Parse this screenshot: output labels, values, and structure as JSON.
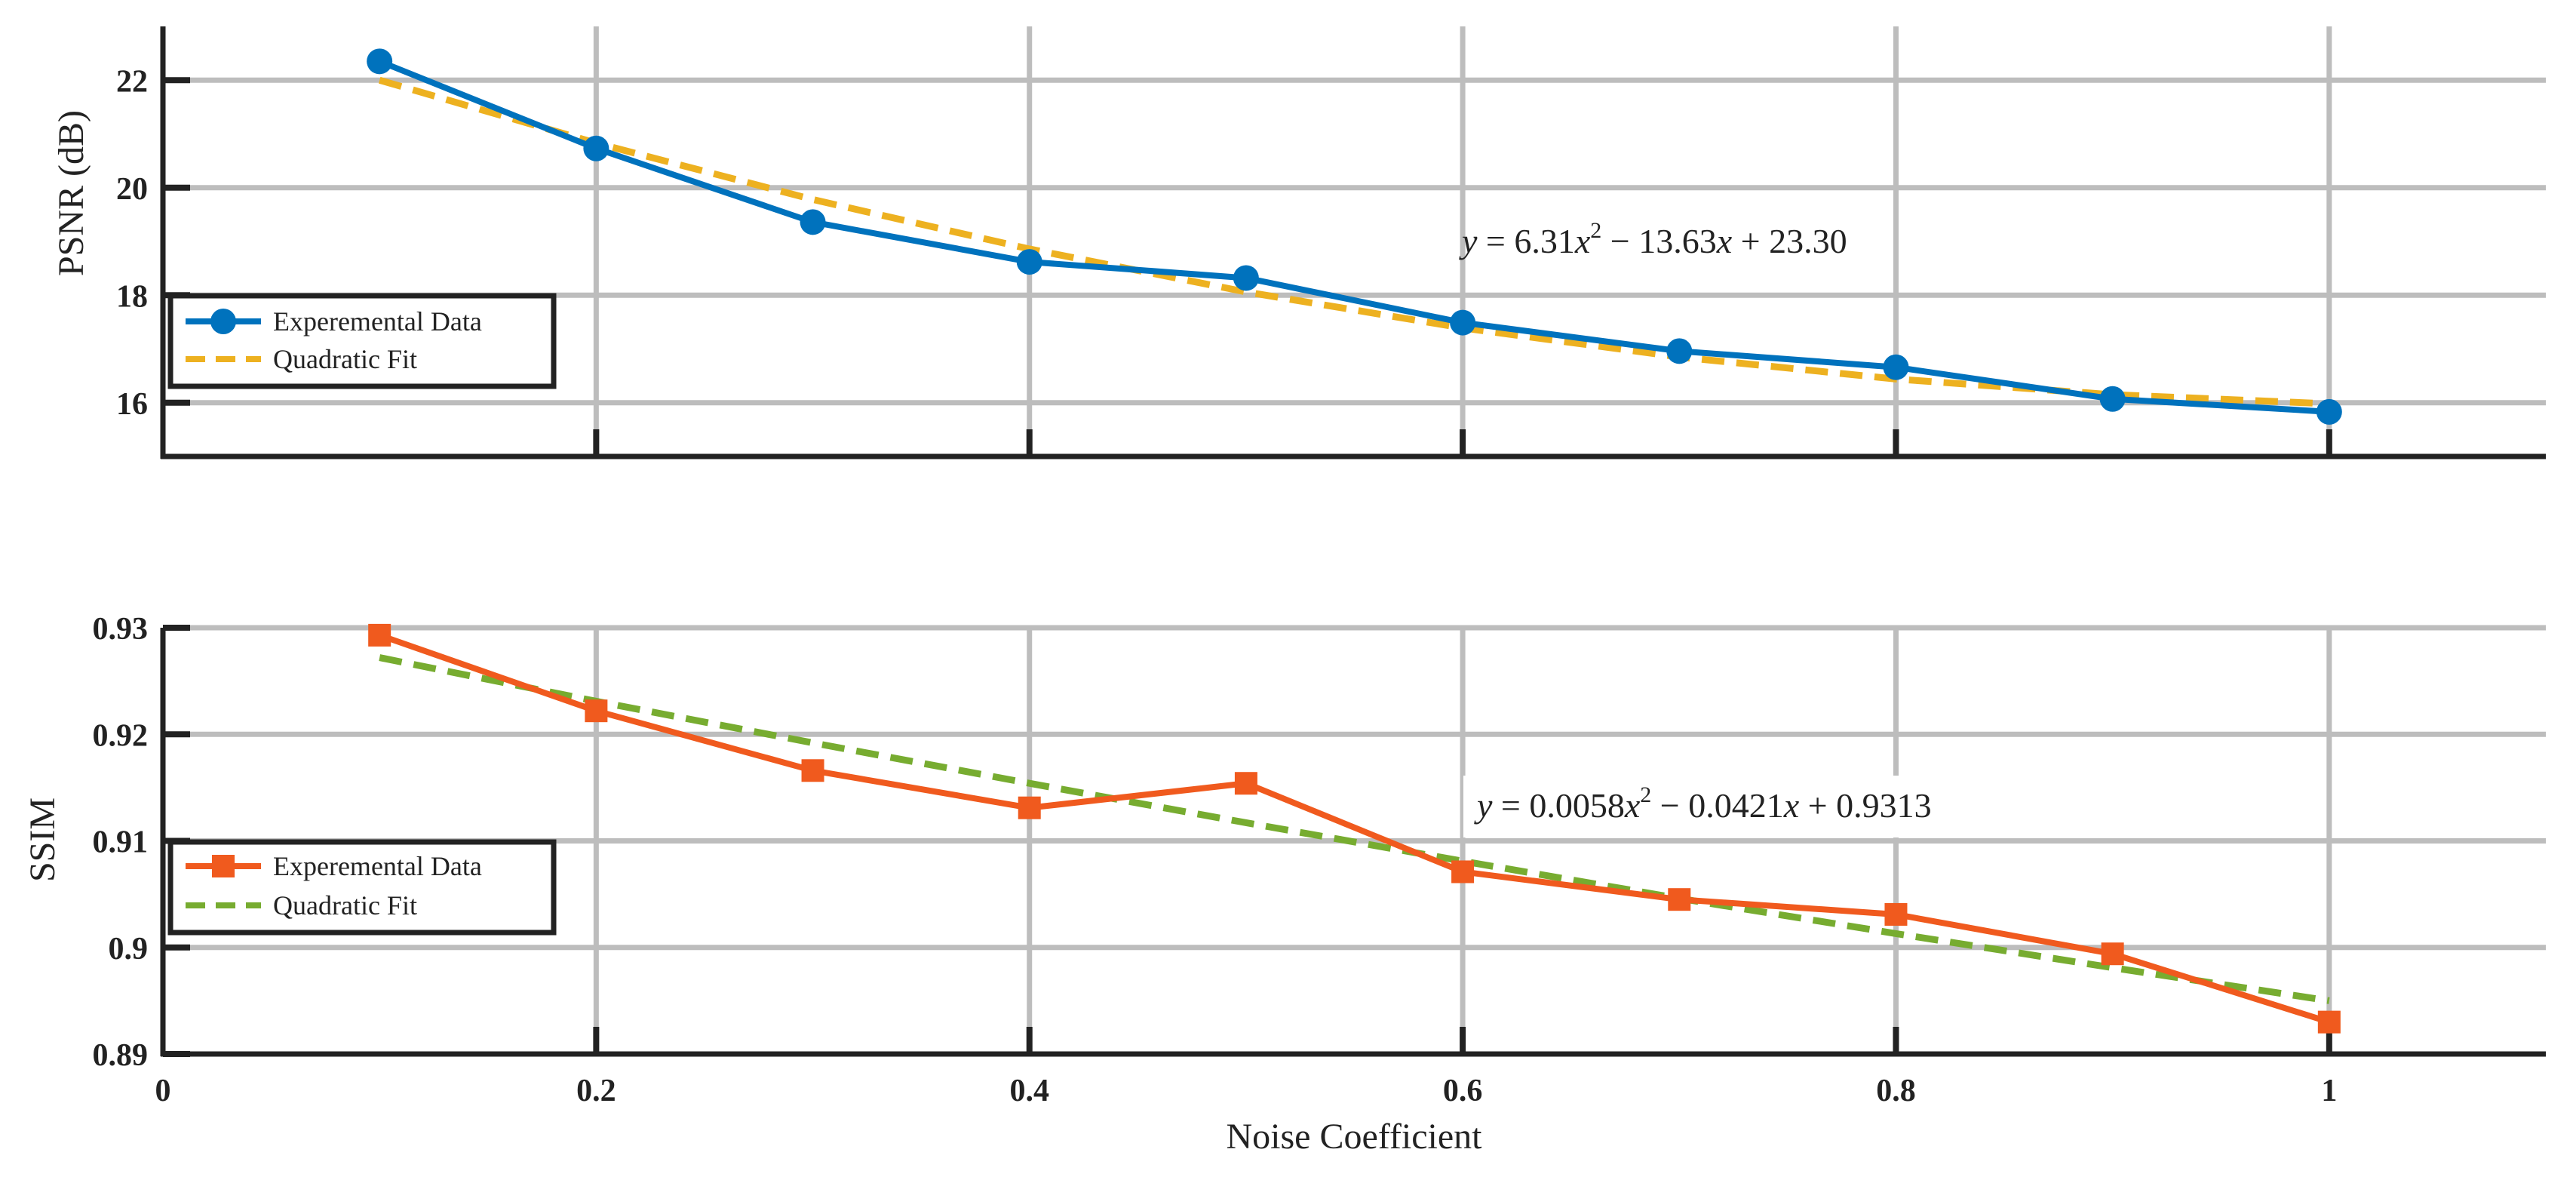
{
  "chart_data": [
    {
      "type": "line",
      "ylabel": "PSNR (dB)",
      "xlabel": "",
      "xlim": [
        0,
        1.1
      ],
      "ylim": [
        15,
        23
      ],
      "grid": true,
      "yticks": [
        16,
        18,
        20,
        22
      ],
      "ytick_labels": [
        "16",
        "18",
        "20",
        "22"
      ],
      "xticks": [
        0.2,
        0.4,
        0.6,
        0.8,
        1
      ],
      "series": [
        {
          "name": "Experemental Data",
          "color": "#0072BD",
          "marker": "circle",
          "x": [
            0.1,
            0.2,
            0.3,
            0.4,
            0.5,
            0.6,
            0.7,
            0.8,
            0.9,
            1.0
          ],
          "values": [
            22.35,
            20.73,
            19.36,
            18.62,
            18.32,
            17.49,
            16.96,
            16.66,
            16.07,
            15.83
          ]
        },
        {
          "name": "Quadratic Fit",
          "color": "#EDB120",
          "style": "dashed",
          "x": [
            0.1,
            0.2,
            0.3,
            0.4,
            0.5,
            0.6,
            0.7,
            0.8,
            0.9,
            1.0
          ],
          "values": [
            22.0,
            20.83,
            19.78,
            18.86,
            18.06,
            17.39,
            16.85,
            16.44,
            16.15,
            15.98
          ]
        }
      ],
      "legend": [
        "Experemental Data",
        "Quadratic Fit"
      ],
      "legend_position": "bottom-left",
      "annotation": "y = 6.31x^2 − 13.63x + 23.30",
      "annotation_parts": {
        "y": "y",
        "eq": " = 6.31",
        "x1": "x",
        "sup": "2",
        "mid": " − 13.63",
        "x2": "x",
        "end": " + 23.30"
      }
    },
    {
      "type": "line",
      "ylabel": "SSIM",
      "xlabel": "Noise Coefficient",
      "xlim": [
        0,
        1.1
      ],
      "ylim": [
        0.89,
        0.93
      ],
      "grid": true,
      "yticks": [
        0.89,
        0.9,
        0.91,
        0.92,
        0.93
      ],
      "ytick_labels": [
        "0.89",
        "0.9",
        "0.91",
        "0.92",
        "0.93"
      ],
      "xticks": [
        0,
        0.2,
        0.4,
        0.6,
        0.8,
        1
      ],
      "xtick_labels": [
        "0",
        "0.2",
        "0.4",
        "0.6",
        "0.8",
        "1"
      ],
      "series": [
        {
          "name": "Experemental Data",
          "color": "#F05A1E",
          "marker": "square",
          "x": [
            0.1,
            0.2,
            0.3,
            0.4,
            0.5,
            0.6,
            0.7,
            0.8,
            0.9,
            1.0
          ],
          "values": [
            0.9293,
            0.9222,
            0.9166,
            0.9131,
            0.9154,
            0.9071,
            0.9045,
            0.9031,
            0.8994,
            0.893
          ]
        },
        {
          "name": "Quadratic Fit",
          "color": "#77AC30",
          "style": "dashed",
          "x": [
            0.1,
            0.2,
            0.3,
            0.4,
            0.5,
            0.6,
            0.7,
            0.8,
            0.9,
            1.0
          ],
          "values": [
            0.9272,
            0.9231,
            0.9192,
            0.9154,
            0.9117,
            0.9081,
            0.9046,
            0.9013,
            0.8981,
            0.895
          ]
        }
      ],
      "legend": [
        "Experemental Data",
        "Quadratic Fit"
      ],
      "legend_position": "bottom-left",
      "annotation": "y = 0.0058x^2 − 0.0421x + 0.9313",
      "annotation_parts": {
        "y": "y",
        "eq": " = 0.0058",
        "x1": "x",
        "sup": "2",
        "mid": " − 0.0421",
        "x2": "x",
        "end": " + 0.9313"
      }
    }
  ]
}
